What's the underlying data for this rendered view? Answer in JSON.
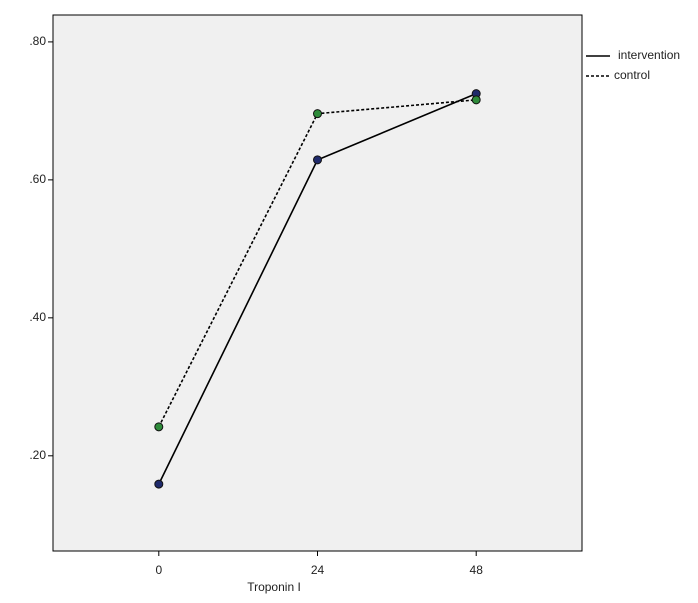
{
  "chart_data": {
    "type": "line",
    "x_label": "Troponin I",
    "x": [
      0,
      24,
      48
    ],
    "series": [
      {
        "name": "intervention",
        "color": "#000000",
        "marker_color": "#1f2a6b",
        "line_style": "solid",
        "values": [
          0.159,
          0.629,
          0.725
        ]
      },
      {
        "name": "control",
        "color": "#000000",
        "marker_color": "#2e8b3a",
        "line_style": "dashed",
        "values": [
          0.242,
          0.696,
          0.716
        ]
      }
    ],
    "xlim": [
      -16,
      64
    ],
    "xticks": [
      0,
      24,
      48
    ],
    "ylim": [
      0.062,
      0.839
    ],
    "yticks": [
      {
        "value": 0.2,
        "label": ".20"
      },
      {
        "value": 0.4,
        "label": ".40"
      },
      {
        "value": 0.6,
        "label": ".60"
      },
      {
        "value": 0.8,
        "label": ".80"
      }
    ],
    "grid": false,
    "legend": "right"
  }
}
